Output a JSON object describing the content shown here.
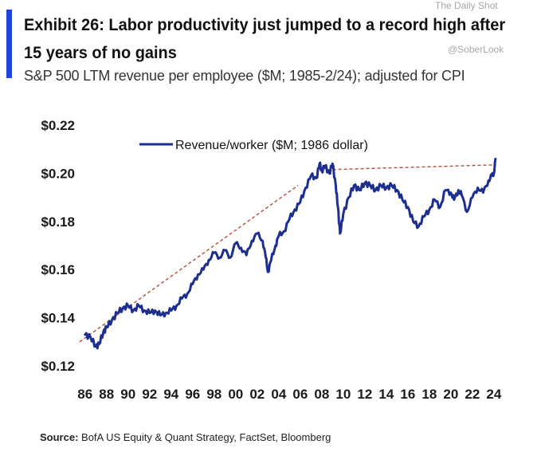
{
  "header": {
    "title": "Exhibit 26: Labor productivity just jumped to a record high after 15 years of no gains",
    "subtitle": "S&P 500 LTM revenue per employee ($M; 1985-2/24); adjusted for CPI"
  },
  "watermarks": {
    "top": "The Daily Shot",
    "handle": "@SoberLook"
  },
  "footer": {
    "source_label": "Source:",
    "source_text": "BofA US Equity & Quant Strategy, FactSet, Bloomberg"
  },
  "colors": {
    "series": "#1c2e8f",
    "trend": "#b84a3a",
    "accent": "#1f44d6"
  },
  "chart_data": {
    "type": "line",
    "title": "Exhibit 26: Labor productivity just jumped to a record high after 15 years of no gains",
    "subtitle": "S&P 500 LTM revenue per employee ($M; 1985-2/24); adjusted for CPI",
    "xlabel": "",
    "ylabel": "",
    "xlim": [
      1985.5,
      2024.6
    ],
    "ylim": [
      0.12,
      0.22
    ],
    "yticks": [
      0.12,
      0.14,
      0.16,
      0.18,
      0.2,
      0.22
    ],
    "ytick_labels": [
      "$0.12",
      "$0.14",
      "$0.16",
      "$0.18",
      "$0.20",
      "$0.22"
    ],
    "xticks": [
      1986,
      1988,
      1990,
      1992,
      1994,
      1996,
      1998,
      2000,
      2002,
      2004,
      2006,
      2008,
      2010,
      2012,
      2014,
      2016,
      2018,
      2020,
      2022,
      2024
    ],
    "xtick_labels": [
      "86",
      "88",
      "90",
      "92",
      "94",
      "96",
      "98",
      "00",
      "02",
      "04",
      "06",
      "08",
      "10",
      "12",
      "14",
      "16",
      "18",
      "20",
      "22",
      "24"
    ],
    "legend": {
      "label": "Revenue/worker ($M; 1986 dollar)",
      "position": "top-center"
    },
    "grid": false,
    "series": [
      {
        "name": "Revenue/worker ($M; 1986 dollar)",
        "x": [
          1986.0,
          1986.5,
          1987.0,
          1987.3,
          1987.7,
          1988.0,
          1988.5,
          1989.0,
          1989.5,
          1990.0,
          1990.5,
          1991.0,
          1991.5,
          1992.0,
          1992.5,
          1993.0,
          1993.5,
          1994.0,
          1994.5,
          1995.0,
          1995.5,
          1996.0,
          1996.5,
          1997.0,
          1997.5,
          1998.0,
          1998.5,
          1999.0,
          1999.5,
          2000.0,
          2000.5,
          2001.0,
          2001.5,
          2002.0,
          2002.5,
          2002.8,
          2003.0,
          2003.3,
          2003.7,
          2004.0,
          2004.5,
          2005.0,
          2005.5,
          2006.0,
          2006.5,
          2007.0,
          2007.5,
          2007.8,
          2008.0,
          2008.3,
          2008.7,
          2009.0,
          2009.3,
          2009.5,
          2009.7,
          2010.0,
          2010.5,
          2011.0,
          2011.5,
          2012.0,
          2012.5,
          2013.0,
          2013.5,
          2014.0,
          2014.5,
          2015.0,
          2015.5,
          2016.0,
          2016.5,
          2017.0,
          2017.5,
          2018.0,
          2018.5,
          2019.0,
          2019.5,
          2020.0,
          2020.3,
          2020.7,
          2021.0,
          2021.5,
          2022.0,
          2022.5,
          2023.0,
          2023.5,
          2023.8,
          2024.0,
          2024.15
        ],
        "values": [
          0.133,
          0.132,
          0.128,
          0.129,
          0.134,
          0.136,
          0.139,
          0.142,
          0.144,
          0.145,
          0.143,
          0.145,
          0.143,
          0.142,
          0.143,
          0.141,
          0.142,
          0.143,
          0.145,
          0.148,
          0.15,
          0.154,
          0.158,
          0.16,
          0.164,
          0.167,
          0.165,
          0.168,
          0.165,
          0.171,
          0.169,
          0.166,
          0.172,
          0.175,
          0.172,
          0.165,
          0.159,
          0.164,
          0.17,
          0.174,
          0.176,
          0.181,
          0.185,
          0.188,
          0.194,
          0.199,
          0.198,
          0.204,
          0.201,
          0.203,
          0.2,
          0.204,
          0.195,
          0.186,
          0.175,
          0.183,
          0.19,
          0.195,
          0.193,
          0.196,
          0.195,
          0.193,
          0.195,
          0.194,
          0.195,
          0.193,
          0.189,
          0.186,
          0.18,
          0.178,
          0.182,
          0.185,
          0.189,
          0.186,
          0.193,
          0.192,
          0.189,
          0.193,
          0.191,
          0.184,
          0.19,
          0.194,
          0.192,
          0.197,
          0.199,
          0.2,
          0.206
        ]
      }
    ],
    "trendlines": [
      {
        "name": "rising trend",
        "x": [
          1985.5,
          2005.8
        ],
        "values": [
          0.13,
          0.195
        ],
        "style": "dashed"
      },
      {
        "name": "flat trend",
        "x": [
          2008.5,
          2024.0
        ],
        "values": [
          0.2015,
          0.2035
        ],
        "style": "dashed"
      }
    ]
  }
}
